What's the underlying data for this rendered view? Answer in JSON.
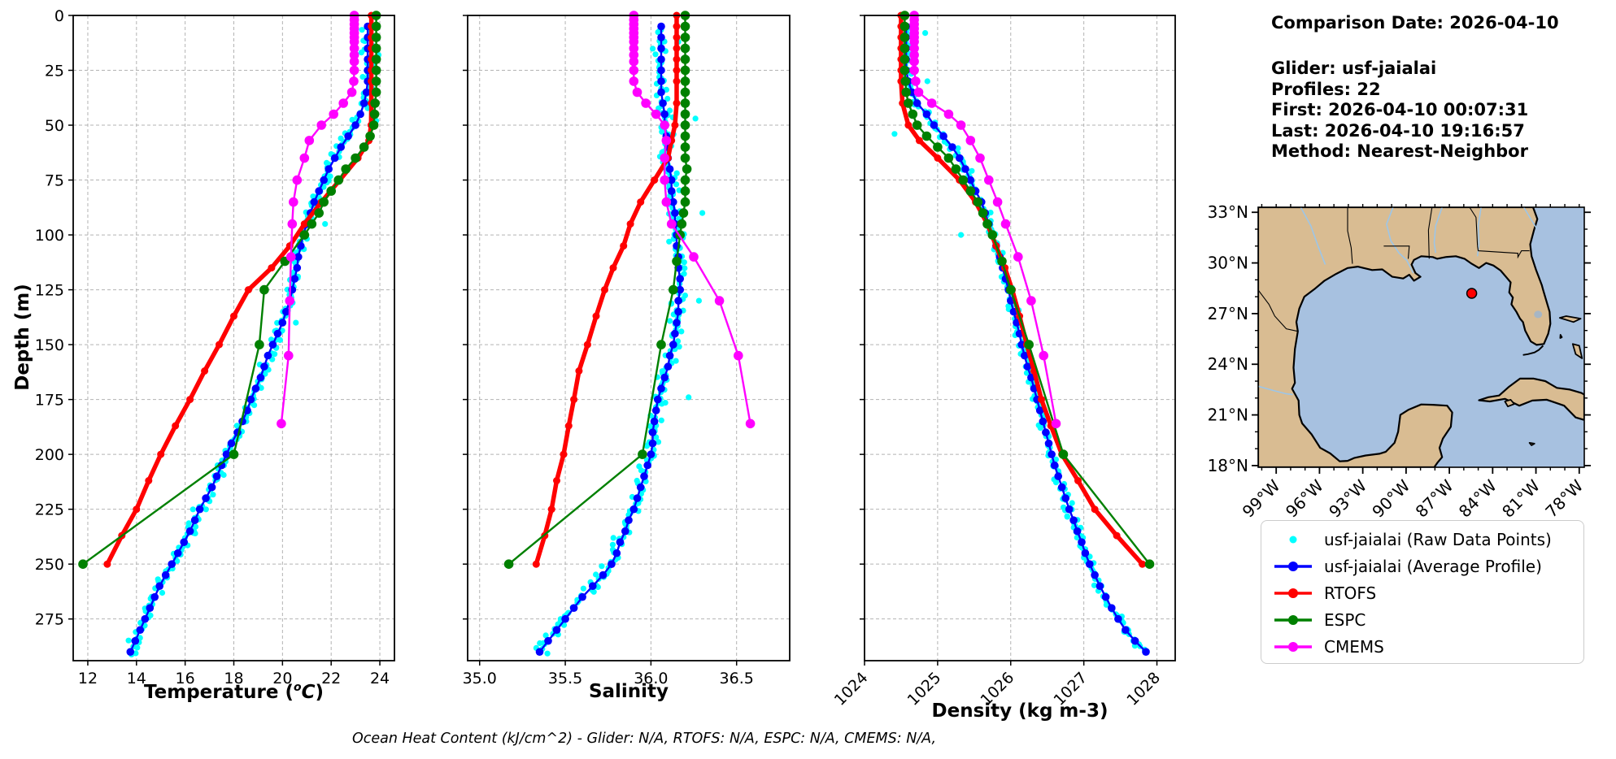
{
  "info_panel": {
    "comparison_date": "Comparison Date: 2026-04-10",
    "glider": "Glider: usf-jaialai",
    "profiles": "Profiles: 22",
    "first": "First: 2026-04-10 00:07:31",
    "last": "Last: 2026-04-10 19:16:57",
    "method": "Method: Nearest-Neighbor"
  },
  "footer_note": "Ocean Heat Content (kJ/cm^2) - Glider: N/A,  RTOFS: N/A,  ESPC: N/A,  CMEMS: N/A,",
  "colors": {
    "raw": "#00ffff",
    "avg": "#0000ff",
    "rtofs": "#ff0000",
    "espc": "#008000",
    "cmems": "#ff00ff",
    "grid": "#b3b3b3",
    "land": "#d9bc92",
    "ocean": "#a7c1e0",
    "river": "#9dc6e8",
    "lake": "#a7b6c4",
    "marker_red": "#ff0000"
  },
  "legend": {
    "items": [
      {
        "label": "usf-jaialai (Raw Data Points)",
        "color_key": "raw",
        "marker": "dot"
      },
      {
        "label": "usf-jaialai (Average Profile)",
        "color_key": "avg",
        "marker": "line-dot"
      },
      {
        "label": "RTOFS",
        "color_key": "rtofs",
        "marker": "line-dot"
      },
      {
        "label": "ESPC",
        "color_key": "espc",
        "marker": "line-dot"
      },
      {
        "label": "CMEMS",
        "color_key": "cmems",
        "marker": "line-dot"
      }
    ]
  },
  "chart_data": {
    "type": "line",
    "description": "Glider depth-profile comparison: three panels sharing a depth axis",
    "depth_axis": {
      "label": "Depth (m)",
      "lim": [
        0,
        294
      ],
      "ticks": [
        0,
        25,
        50,
        75,
        100,
        125,
        150,
        175,
        200,
        225,
        250,
        275
      ],
      "tick_labels": [
        "0",
        "25",
        "50",
        "75",
        "100",
        "125",
        "150",
        "175",
        "200",
        "225",
        "250",
        "275"
      ]
    },
    "panels": [
      {
        "id": "temperature",
        "var": "temperature",
        "xlabel_main": "Temperature (",
        "xlabel_sup": "o",
        "xlabel_cap": "C",
        "xlabel_close": ")",
        "xlim": [
          11.4,
          24.6
        ],
        "xticks": [
          12,
          14,
          16,
          18,
          20,
          22,
          24
        ],
        "xtick_labels": [
          "12",
          "14",
          "16",
          "18",
          "20",
          "22",
          "24"
        ],
        "rotate_xtick_labels": false
      },
      {
        "id": "salinity",
        "var": "salinity",
        "xlabel": "Salinity",
        "xlim": [
          34.93,
          36.81
        ],
        "xticks": [
          35.0,
          35.5,
          36.0,
          36.5
        ],
        "xtick_labels": [
          "35.0",
          "35.5",
          "36.0",
          "36.5"
        ],
        "rotate_xtick_labels": false
      },
      {
        "id": "density",
        "var": "density",
        "xlabel": "Density (kg m-3)",
        "xlim": [
          1024.0,
          1028.25
        ],
        "xticks": [
          1024,
          1025,
          1026,
          1027,
          1028
        ],
        "xtick_labels": [
          "1024",
          "1025",
          "1026",
          "1027",
          "1028"
        ],
        "rotate_xtick_labels": true
      }
    ],
    "glider_avg": {
      "label": "usf-jaialai (Average Profile)",
      "depth_start": 5,
      "depth_step": 5,
      "temperature": [
        23.5,
        23.5,
        23.5,
        23.5,
        23.5,
        23.5,
        23.45,
        23.35,
        23.2,
        23.0,
        22.7,
        22.4,
        22.15,
        21.9,
        21.7,
        21.5,
        21.3,
        21.15,
        21.0,
        20.85,
        20.75,
        20.65,
        20.6,
        20.5,
        20.4,
        20.3,
        20.15,
        20.0,
        19.8,
        19.6,
        19.4,
        19.25,
        19.1,
        18.9,
        18.7,
        18.55,
        18.35,
        18.15,
        17.9,
        17.7,
        17.5,
        17.3,
        17.1,
        16.85,
        16.6,
        16.4,
        16.2,
        15.95,
        15.7,
        15.45,
        15.2,
        14.95,
        14.75,
        14.55,
        14.35,
        14.15,
        13.95,
        13.75
      ],
      "salinity": [
        36.06,
        36.06,
        36.06,
        36.06,
        36.06,
        36.06,
        36.06,
        36.07,
        36.08,
        36.08,
        36.09,
        36.1,
        36.1,
        36.11,
        36.12,
        36.12,
        36.13,
        36.14,
        36.14,
        36.15,
        36.15,
        36.16,
        36.16,
        36.17,
        36.17,
        36.16,
        36.16,
        36.15,
        36.14,
        36.13,
        36.11,
        36.1,
        36.08,
        36.06,
        36.04,
        36.03,
        36.02,
        36.01,
        36.01,
        36.0,
        35.98,
        35.96,
        35.94,
        35.92,
        35.9,
        35.87,
        35.85,
        35.82,
        35.8,
        35.77,
        35.72,
        35.66,
        35.6,
        35.55,
        35.5,
        35.45,
        35.4,
        35.35
      ],
      "density": [
        1024.57,
        1024.57,
        1024.57,
        1024.57,
        1024.57,
        1024.6,
        1024.65,
        1024.72,
        1024.85,
        1024.95,
        1025.08,
        1025.2,
        1025.3,
        1025.38,
        1025.45,
        1025.52,
        1025.6,
        1025.65,
        1025.7,
        1025.75,
        1025.8,
        1025.85,
        1025.89,
        1025.93,
        1025.97,
        1026.0,
        1026.04,
        1026.08,
        1026.12,
        1026.15,
        1026.19,
        1026.23,
        1026.28,
        1026.32,
        1026.36,
        1026.4,
        1026.44,
        1026.48,
        1026.52,
        1026.56,
        1026.6,
        1026.65,
        1026.7,
        1026.75,
        1026.8,
        1026.86,
        1026.91,
        1026.97,
        1027.02,
        1027.08,
        1027.15,
        1027.22,
        1027.3,
        1027.38,
        1027.47,
        1027.57,
        1027.7,
        1027.85
      ]
    },
    "glider_raw": {
      "label": "usf-jaialai (Raw Data Points)",
      "spread": {
        "temperature": 0.3,
        "salinity": 0.055,
        "density": 0.08
      },
      "outliers": {
        "temperature": [
          [
            18,
            23.95
          ],
          [
            48,
            23.85
          ],
          [
            95,
            21.75
          ],
          [
            140,
            20.55
          ],
          [
            205,
            17.6
          ]
        ],
        "salinity": [
          [
            12,
            36.16
          ],
          [
            47,
            36.26
          ],
          [
            90,
            36.3
          ],
          [
            130,
            36.28
          ],
          [
            174,
            36.22
          ]
        ],
        "density": [
          [
            8,
            1024.83
          ],
          [
            30,
            1024.86
          ],
          [
            54,
            1024.41
          ],
          [
            100,
            1025.32
          ]
        ]
      }
    },
    "models": [
      {
        "id": "rtofs",
        "label": "RTOFS",
        "color": "#ff0000",
        "depths": [
          0,
          5,
          10,
          15,
          20,
          25,
          30,
          40,
          50,
          57,
          65,
          75,
          85,
          95,
          105,
          115,
          125,
          137,
          150,
          162,
          175,
          187,
          200,
          212,
          225,
          237,
          250
        ],
        "temperature": [
          23.65,
          23.65,
          23.65,
          23.65,
          23.65,
          23.65,
          23.65,
          23.65,
          23.64,
          23.55,
          23.1,
          22.35,
          21.6,
          20.9,
          20.3,
          19.55,
          18.6,
          18.0,
          17.4,
          16.8,
          16.2,
          15.6,
          15.0,
          14.5,
          14.0,
          13.4,
          12.8
        ],
        "salinity": [
          36.15,
          36.15,
          36.15,
          36.15,
          36.15,
          36.15,
          36.15,
          36.15,
          36.14,
          36.12,
          36.1,
          36.02,
          35.94,
          35.88,
          35.84,
          35.78,
          35.73,
          35.68,
          35.63,
          35.58,
          35.55,
          35.52,
          35.49,
          35.45,
          35.42,
          35.38,
          35.33
        ],
        "density": [
          1024.5,
          1024.5,
          1024.5,
          1024.5,
          1024.5,
          1024.5,
          1024.5,
          1024.52,
          1024.6,
          1024.75,
          1025.0,
          1025.3,
          1025.52,
          1025.68,
          1025.8,
          1025.92,
          1026.02,
          1026.12,
          1026.22,
          1026.32,
          1026.42,
          1026.55,
          1026.7,
          1026.92,
          1027.15,
          1027.45,
          1027.8
        ]
      },
      {
        "id": "espc",
        "label": "ESPC",
        "color": "#008000",
        "depths": [
          0,
          5,
          10,
          15,
          20,
          25,
          30,
          35,
          40,
          45,
          50,
          55,
          60,
          65,
          70,
          75,
          80,
          85,
          90,
          95,
          100,
          112,
          125,
          150,
          200,
          250
        ],
        "temperature": [
          23.85,
          23.85,
          23.85,
          23.85,
          23.85,
          23.85,
          23.85,
          23.85,
          23.8,
          23.78,
          23.75,
          23.6,
          23.35,
          23.0,
          22.6,
          22.3,
          22.0,
          21.7,
          21.5,
          21.2,
          20.9,
          20.1,
          19.25,
          19.05,
          18.0,
          11.8
        ],
        "salinity": [
          36.2,
          36.2,
          36.2,
          36.2,
          36.2,
          36.2,
          36.2,
          36.2,
          36.2,
          36.2,
          36.2,
          36.2,
          36.2,
          36.2,
          36.21,
          36.2,
          36.2,
          36.2,
          36.19,
          36.18,
          36.17,
          36.15,
          36.13,
          36.06,
          35.95,
          35.17
        ],
        "density": [
          1024.55,
          1024.55,
          1024.55,
          1024.55,
          1024.55,
          1024.55,
          1024.56,
          1024.57,
          1024.6,
          1024.66,
          1024.72,
          1024.85,
          1025.0,
          1025.15,
          1025.25,
          1025.35,
          1025.45,
          1025.55,
          1025.62,
          1025.68,
          1025.75,
          1025.88,
          1026.0,
          1026.25,
          1026.72,
          1027.9
        ]
      },
      {
        "id": "cmems",
        "label": "CMEMS",
        "color": "#ff00ff",
        "depths": [
          0,
          2,
          4,
          6,
          8,
          10,
          12,
          15,
          18,
          21,
          25,
          30,
          35,
          40,
          45,
          50,
          57,
          65,
          75,
          85,
          95,
          110,
          130,
          155,
          186
        ],
        "temperature": [
          22.95,
          22.95,
          22.95,
          22.95,
          22.95,
          22.95,
          22.95,
          22.95,
          22.95,
          22.95,
          22.95,
          22.93,
          22.85,
          22.5,
          22.1,
          21.6,
          21.1,
          20.9,
          20.6,
          20.45,
          20.4,
          20.35,
          20.3,
          20.25,
          19.95
        ],
        "salinity": [
          35.9,
          35.9,
          35.9,
          35.9,
          35.9,
          35.9,
          35.9,
          35.9,
          35.9,
          35.9,
          35.9,
          35.9,
          35.92,
          35.97,
          36.03,
          36.08,
          36.09,
          36.08,
          36.08,
          36.09,
          36.12,
          36.25,
          36.4,
          36.51,
          36.58
        ],
        "density": [
          1024.68,
          1024.68,
          1024.68,
          1024.68,
          1024.68,
          1024.68,
          1024.68,
          1024.68,
          1024.68,
          1024.68,
          1024.68,
          1024.7,
          1024.74,
          1024.92,
          1025.15,
          1025.32,
          1025.45,
          1025.58,
          1025.7,
          1025.82,
          1025.93,
          1026.1,
          1026.28,
          1026.45,
          1026.62
        ]
      }
    ],
    "map": {
      "extent": {
        "lon_min": -100.25,
        "lon_max": -77.65,
        "lat_min": 17.9,
        "lat_max": 33.3
      },
      "lat_ticks": [
        33,
        30,
        27,
        24,
        21,
        18
      ],
      "lat_tick_labels": [
        "33°N",
        "30°N",
        "27°N",
        "24°N",
        "21°N",
        "18°N"
      ],
      "lon_ticks": [
        -99,
        -96,
        -93,
        -90,
        -87,
        -84,
        -81,
        -78
      ],
      "lon_tick_labels": [
        "99°W",
        "96°W",
        "93°W",
        "90°W",
        "87°W",
        "84°W",
        "81°W",
        "78°W"
      ],
      "glider_marker": {
        "lon": -85.45,
        "lat": 28.2
      }
    }
  }
}
